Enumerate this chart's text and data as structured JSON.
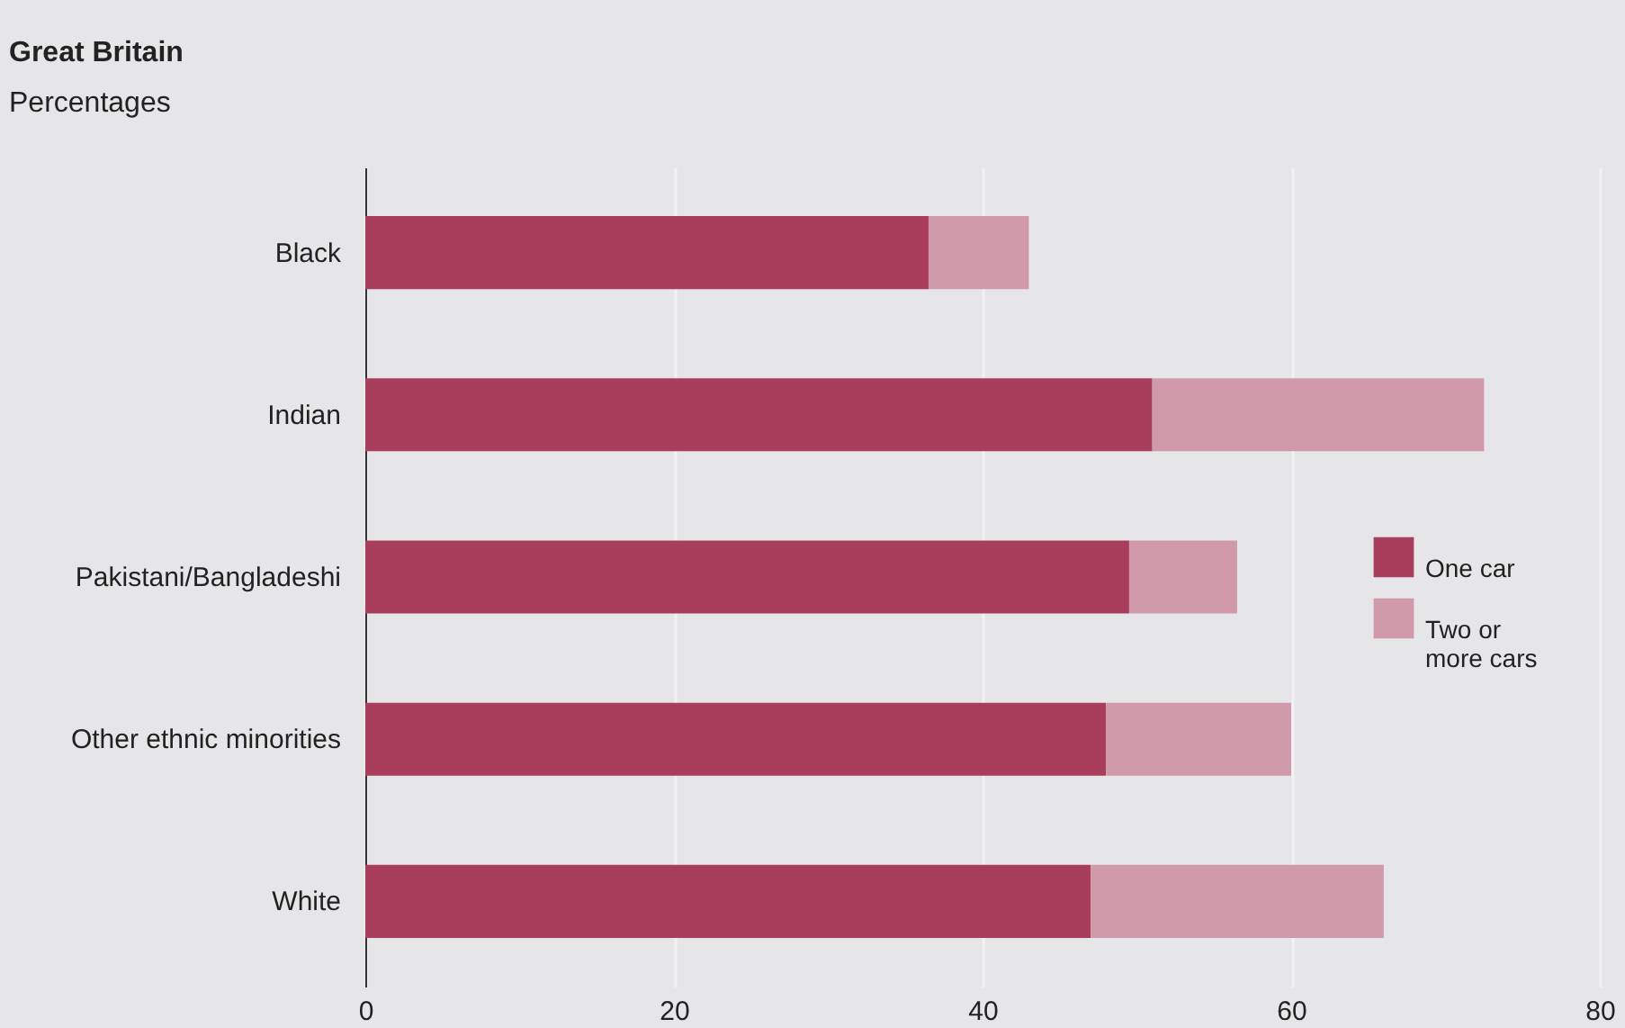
{
  "chart_data": {
    "type": "bar",
    "title": "Great Britain",
    "subtitle": "Percentages",
    "orientation": "horizontal",
    "stacked": true,
    "categories": [
      "Black",
      "Indian",
      "Pakistani/Bangladeshi",
      "Other ethnic minorities",
      "White"
    ],
    "series": [
      {
        "name": "One car",
        "color": "#a83e5c",
        "values": [
          36.5,
          51,
          49.5,
          48,
          47
        ]
      },
      {
        "name": "Two or more cars",
        "color": "#d19aab",
        "values": [
          6.5,
          21.5,
          7,
          12,
          19
        ]
      }
    ],
    "xlim": [
      0,
      80
    ],
    "xticks": [
      0,
      20,
      40,
      60,
      80
    ],
    "grid": "x",
    "legend": "right"
  }
}
